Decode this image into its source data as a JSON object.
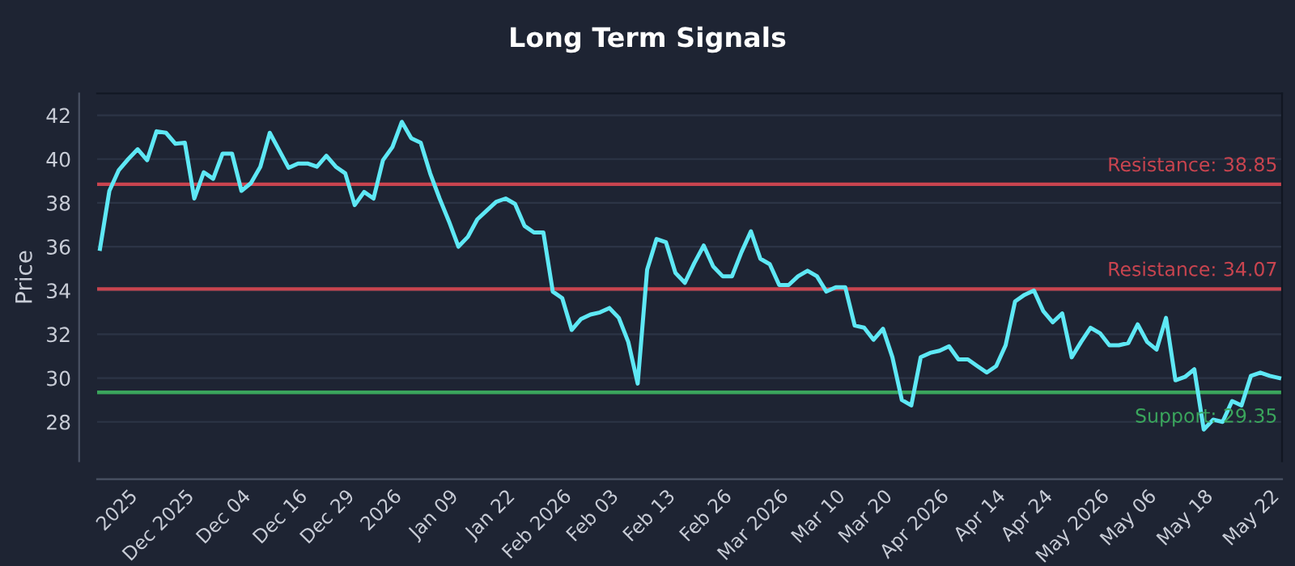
{
  "chart_data": {
    "type": "line",
    "title": "Long Term Signals",
    "ylabel": "Price",
    "categories": [
      null,
      null,
      null,
      "2025",
      null,
      null,
      null,
      null,
      null,
      "Dec 2025",
      null,
      null,
      null,
      null,
      null,
      "Dec 04",
      null,
      null,
      null,
      null,
      null,
      "Dec 16",
      null,
      null,
      null,
      null,
      "Dec 29",
      null,
      null,
      null,
      null,
      "2026",
      null,
      null,
      null,
      null,
      null,
      "Jan 09",
      null,
      null,
      null,
      null,
      null,
      "Jan 22",
      null,
      null,
      null,
      null,
      null,
      "Feb 2026",
      null,
      null,
      null,
      null,
      "Feb 03",
      null,
      null,
      null,
      null,
      null,
      "Feb 13",
      null,
      null,
      null,
      null,
      null,
      "Feb 26",
      null,
      null,
      null,
      null,
      null,
      "Mar 2026",
      null,
      null,
      null,
      null,
      null,
      "Mar 10",
      null,
      null,
      null,
      null,
      "Mar 20",
      null,
      null,
      null,
      null,
      null,
      "Apr 2026",
      null,
      null,
      null,
      null,
      null,
      "Apr 14",
      null,
      null,
      null,
      null,
      "Apr 24",
      null,
      null,
      null,
      null,
      null,
      "May 2026",
      null,
      null,
      null,
      null,
      "May 06",
      null,
      null,
      null,
      null,
      null,
      "May 18",
      null,
      null,
      null,
      null,
      null,
      null,
      "May 22",
      null
    ],
    "series": [
      {
        "color": "#5ee8f5",
        "values": [
          35.9,
          38.55,
          39.5,
          40.0,
          40.45,
          39.95,
          41.27,
          41.2,
          40.7,
          40.75,
          38.2,
          39.4,
          39.1,
          40.25,
          40.25,
          38.55,
          38.9,
          39.65,
          41.2,
          40.4,
          39.6,
          39.8,
          39.8,
          39.65,
          40.15,
          39.65,
          39.35,
          37.9,
          38.5,
          38.2,
          39.95,
          40.55,
          41.7,
          40.95,
          40.75,
          39.35,
          38.2,
          37.15,
          36.0,
          36.45,
          37.25,
          37.65,
          38.05,
          38.2,
          37.95,
          36.95,
          36.65,
          36.65,
          33.95,
          33.65,
          32.2,
          32.7,
          32.9,
          33.0,
          33.2,
          32.75,
          31.65,
          29.75,
          34.95,
          36.35,
          36.2,
          34.8,
          34.35,
          35.25,
          36.05,
          35.1,
          34.65,
          34.65,
          35.75,
          36.7,
          35.45,
          35.2,
          34.25,
          34.25,
          34.65,
          34.9,
          34.65,
          33.95,
          34.15,
          34.15,
          32.4,
          32.3,
          31.75,
          32.25,
          30.95,
          29.0,
          28.75,
          30.95,
          31.15,
          31.25,
          31.45,
          30.85,
          30.85,
          30.55,
          30.25,
          30.55,
          31.5,
          33.5,
          33.8,
          34.0,
          33.05,
          32.55,
          32.95,
          30.95,
          31.65,
          32.3,
          32.05,
          31.5,
          31.5,
          31.6,
          32.45,
          31.65,
          31.3,
          32.75,
          29.9,
          30.05,
          30.4,
          27.65,
          28.1,
          28.0,
          28.95,
          28.75,
          30.1,
          30.25,
          30.1,
          30.0
        ]
      }
    ],
    "ylim": [
      26.2,
      43.0
    ],
    "yticks": [
      28,
      30,
      32,
      34,
      36,
      38,
      40,
      42
    ],
    "grid": "y",
    "marker": "none",
    "line_style": "solid",
    "ref_lines": [
      {
        "axis": "y",
        "value": 38.85,
        "label": "Resistance: 38.85",
        "color": "#c9444f"
      },
      {
        "axis": "y",
        "value": 34.07,
        "label": "Resistance: 34.07",
        "color": "#c9444f"
      },
      {
        "axis": "y",
        "value": 29.35,
        "label": "Support: 29.35",
        "color": "#3aa55c"
      }
    ]
  }
}
